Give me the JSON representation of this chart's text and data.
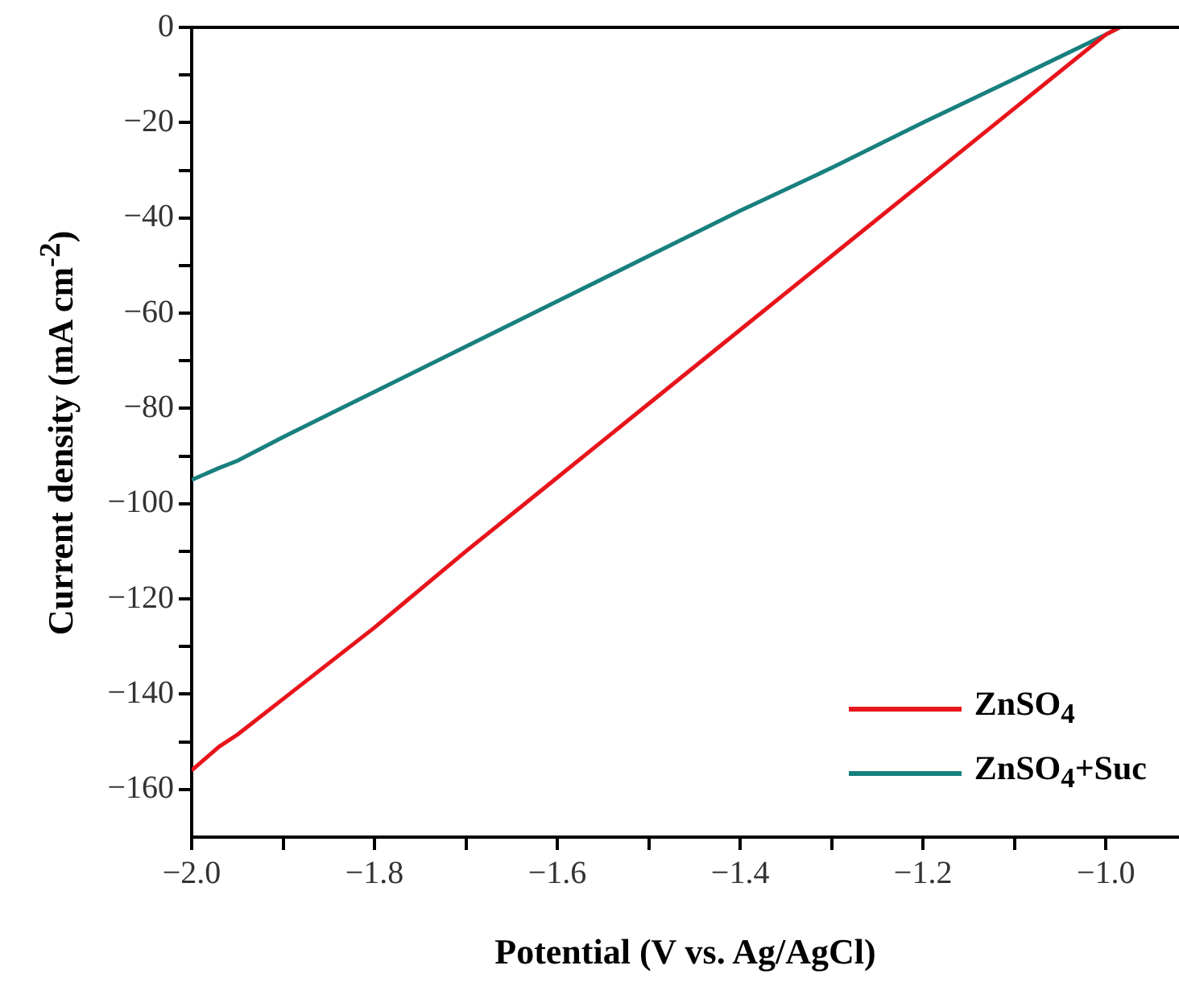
{
  "chart_data": {
    "type": "line",
    "xlabel": "Potential (V vs. Ag/AgCl)",
    "ylabel": "Current density (mA cm$^{-2}$)",
    "xlim": [
      -2.0,
      -0.92
    ],
    "ylim": [
      -170,
      0
    ],
    "xticks": [
      {
        "value": -2,
        "label": "−2.0"
      },
      {
        "value": -1.9,
        "label": null
      },
      {
        "value": -1.8,
        "label": "−1.8"
      },
      {
        "value": -1.7,
        "label": null
      },
      {
        "value": -1.6,
        "label": "−1.6"
      },
      {
        "value": -1.5,
        "label": null
      },
      {
        "value": -1.4,
        "label": "−1.4"
      },
      {
        "value": -1.3,
        "label": null
      },
      {
        "value": -1.2,
        "label": "−1.2"
      },
      {
        "value": -1.1,
        "label": null
      },
      {
        "value": -1.0,
        "label": "−1.0"
      }
    ],
    "yticks": [
      {
        "value": -160,
        "label": "−160"
      },
      {
        "value": -150,
        "label": null
      },
      {
        "value": -140,
        "label": "−140"
      },
      {
        "value": -130,
        "label": null
      },
      {
        "value": -120,
        "label": "−120"
      },
      {
        "value": -110,
        "label": null
      },
      {
        "value": -100,
        "label": "−100"
      },
      {
        "value": -90,
        "label": null
      },
      {
        "value": -80,
        "label": "−80"
      },
      {
        "value": -70,
        "label": null
      },
      {
        "value": -60,
        "label": "−60"
      },
      {
        "value": -50,
        "label": null
      },
      {
        "value": -40,
        "label": "−40"
      },
      {
        "value": -30,
        "label": null
      },
      {
        "value": -20,
        "label": "−20"
      },
      {
        "value": -10,
        "label": null
      },
      {
        "value": 0,
        "label": "0"
      }
    ],
    "x": [
      -2.0,
      -1.97,
      -1.95,
      -1.9,
      -1.8,
      -1.7,
      -1.6,
      -1.5,
      -1.4,
      -1.3,
      -1.2,
      -1.1,
      -1.0,
      -0.985
    ],
    "series": [
      {
        "name": "ZnSO$_{4}$",
        "color": "#e8141b",
        "values": [
          -156,
          -151,
          -148.5,
          -141,
          -126,
          -110,
          -94.5,
          -79,
          -63.5,
          -48,
          -32.5,
          -17,
          -1.5,
          0
        ]
      },
      {
        "name": "ZnSO$_{4}$+Suc",
        "color": "#18807e",
        "values": [
          -95,
          -92.5,
          -91,
          -86,
          -76.5,
          -67,
          -57.5,
          -48,
          -38.5,
          -29.5,
          -20,
          -10.8,
          -1.5,
          0
        ]
      }
    ],
    "grid": false,
    "legend": "bottom right",
    "marker": "none",
    "line_style": "solid"
  }
}
